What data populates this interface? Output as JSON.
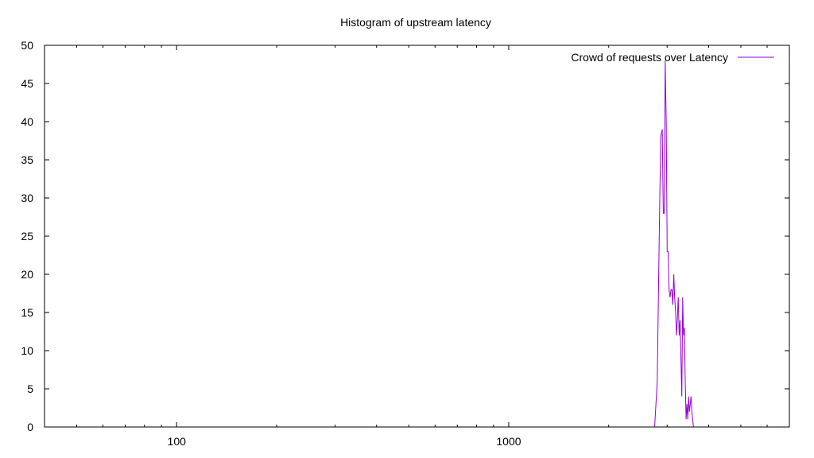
{
  "chart_data": {
    "type": "line",
    "title": "Histogram of upstream latency",
    "xlabel": "",
    "ylabel": "",
    "x_scale": "log",
    "xlim": [
      40,
      7000
    ],
    "ylim": [
      0,
      50
    ],
    "grid": false,
    "legend_position": "top-right",
    "x_ticks": [
      {
        "value": 100,
        "label": "100"
      },
      {
        "value": 1000,
        "label": "1000"
      }
    ],
    "y_ticks": [
      {
        "value": 0,
        "label": "0"
      },
      {
        "value": 5,
        "label": "5"
      },
      {
        "value": 10,
        "label": "10"
      },
      {
        "value": 15,
        "label": "15"
      },
      {
        "value": 20,
        "label": "20"
      },
      {
        "value": 25,
        "label": "25"
      },
      {
        "value": 30,
        "label": "30"
      },
      {
        "value": 35,
        "label": "35"
      },
      {
        "value": 40,
        "label": "40"
      },
      {
        "value": 45,
        "label": "45"
      },
      {
        "value": 50,
        "label": "50"
      }
    ],
    "series": [
      {
        "name": "Crowd of requests over Latency",
        "color": "#9400d3",
        "x": [
          2750,
          2800,
          2840,
          2870,
          2900,
          2920,
          2940,
          2960,
          2980,
          3000,
          3020,
          3040,
          3060,
          3080,
          3100,
          3120,
          3140,
          3160,
          3180,
          3200,
          3220,
          3240,
          3260,
          3280,
          3300,
          3320,
          3340,
          3360,
          3380,
          3400,
          3420,
          3440,
          3460,
          3480,
          3500,
          3520,
          3540,
          3560,
          3580,
          3600,
          3620,
          3640,
          3660,
          3680,
          3700,
          3720,
          3740,
          3760,
          3780,
          3800,
          3820,
          3840,
          3860,
          3880,
          3900,
          3920,
          3950,
          3990
        ],
        "values": [
          0,
          6,
          25,
          38,
          39,
          28,
          28,
          48,
          40,
          23,
          23,
          18,
          17,
          18,
          18,
          16,
          20,
          17,
          15,
          12,
          14,
          17,
          12,
          14,
          9,
          4,
          17,
          12,
          13,
          6,
          1,
          3,
          1,
          4,
          2,
          3,
          4,
          2,
          1,
          0,
          0,
          0,
          0,
          0,
          0,
          0,
          0,
          0,
          0,
          0,
          0,
          0,
          0,
          0,
          0,
          0,
          0,
          0
        ]
      }
    ]
  }
}
